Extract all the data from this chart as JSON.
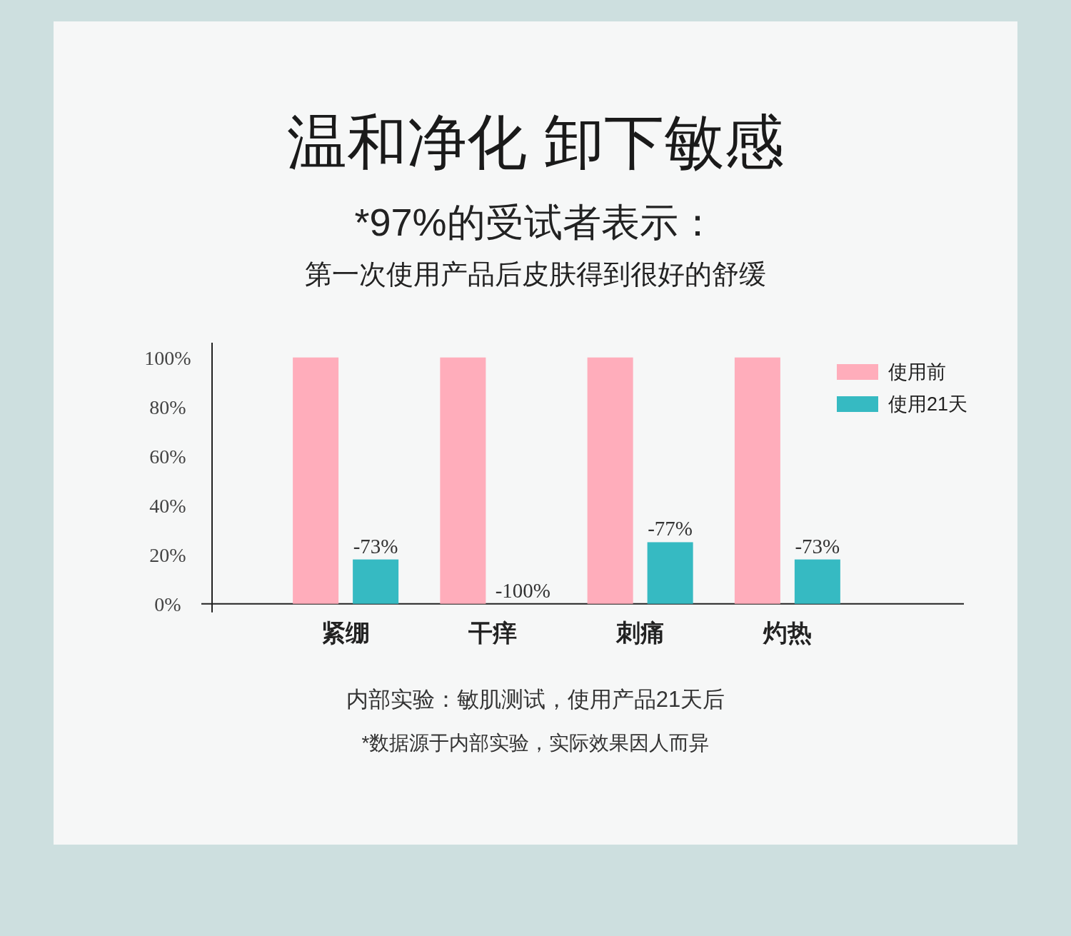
{
  "chart_data": {
    "type": "bar",
    "title": "温和净化 卸下敏感",
    "subtitle": "*97%的受试者表示：",
    "categories": [
      "紧绷",
      "干痒",
      "刺痛",
      "灼热"
    ],
    "series": [
      {
        "name": "使用前",
        "color": "#ffadbb",
        "values": [
          100,
          100,
          100,
          100
        ]
      },
      {
        "name": "使用21天",
        "color": "#36bac2",
        "values": [
          18,
          0,
          25,
          18
        ]
      }
    ],
    "ylim": [
      0,
      106
    ],
    "yticks": [
      {
        "value": 0,
        "label": "0%"
      },
      {
        "value": 20,
        "label": "20%"
      },
      {
        "value": 40,
        "label": "40%"
      },
      {
        "value": 60,
        "label": "60%"
      },
      {
        "value": 80,
        "label": "80%"
      },
      {
        "value": 100,
        "label": "100%"
      }
    ],
    "legend": "top right",
    "annotations": [
      "第一次使用产品后皮肤得到很好的舒缓",
      "-73%",
      "-100%",
      "-77%",
      "-73%",
      "内部实验：敏肌测试，使用产品21天后",
      "*数据源于内部实验，实际效果因人而异"
    ]
  }
}
